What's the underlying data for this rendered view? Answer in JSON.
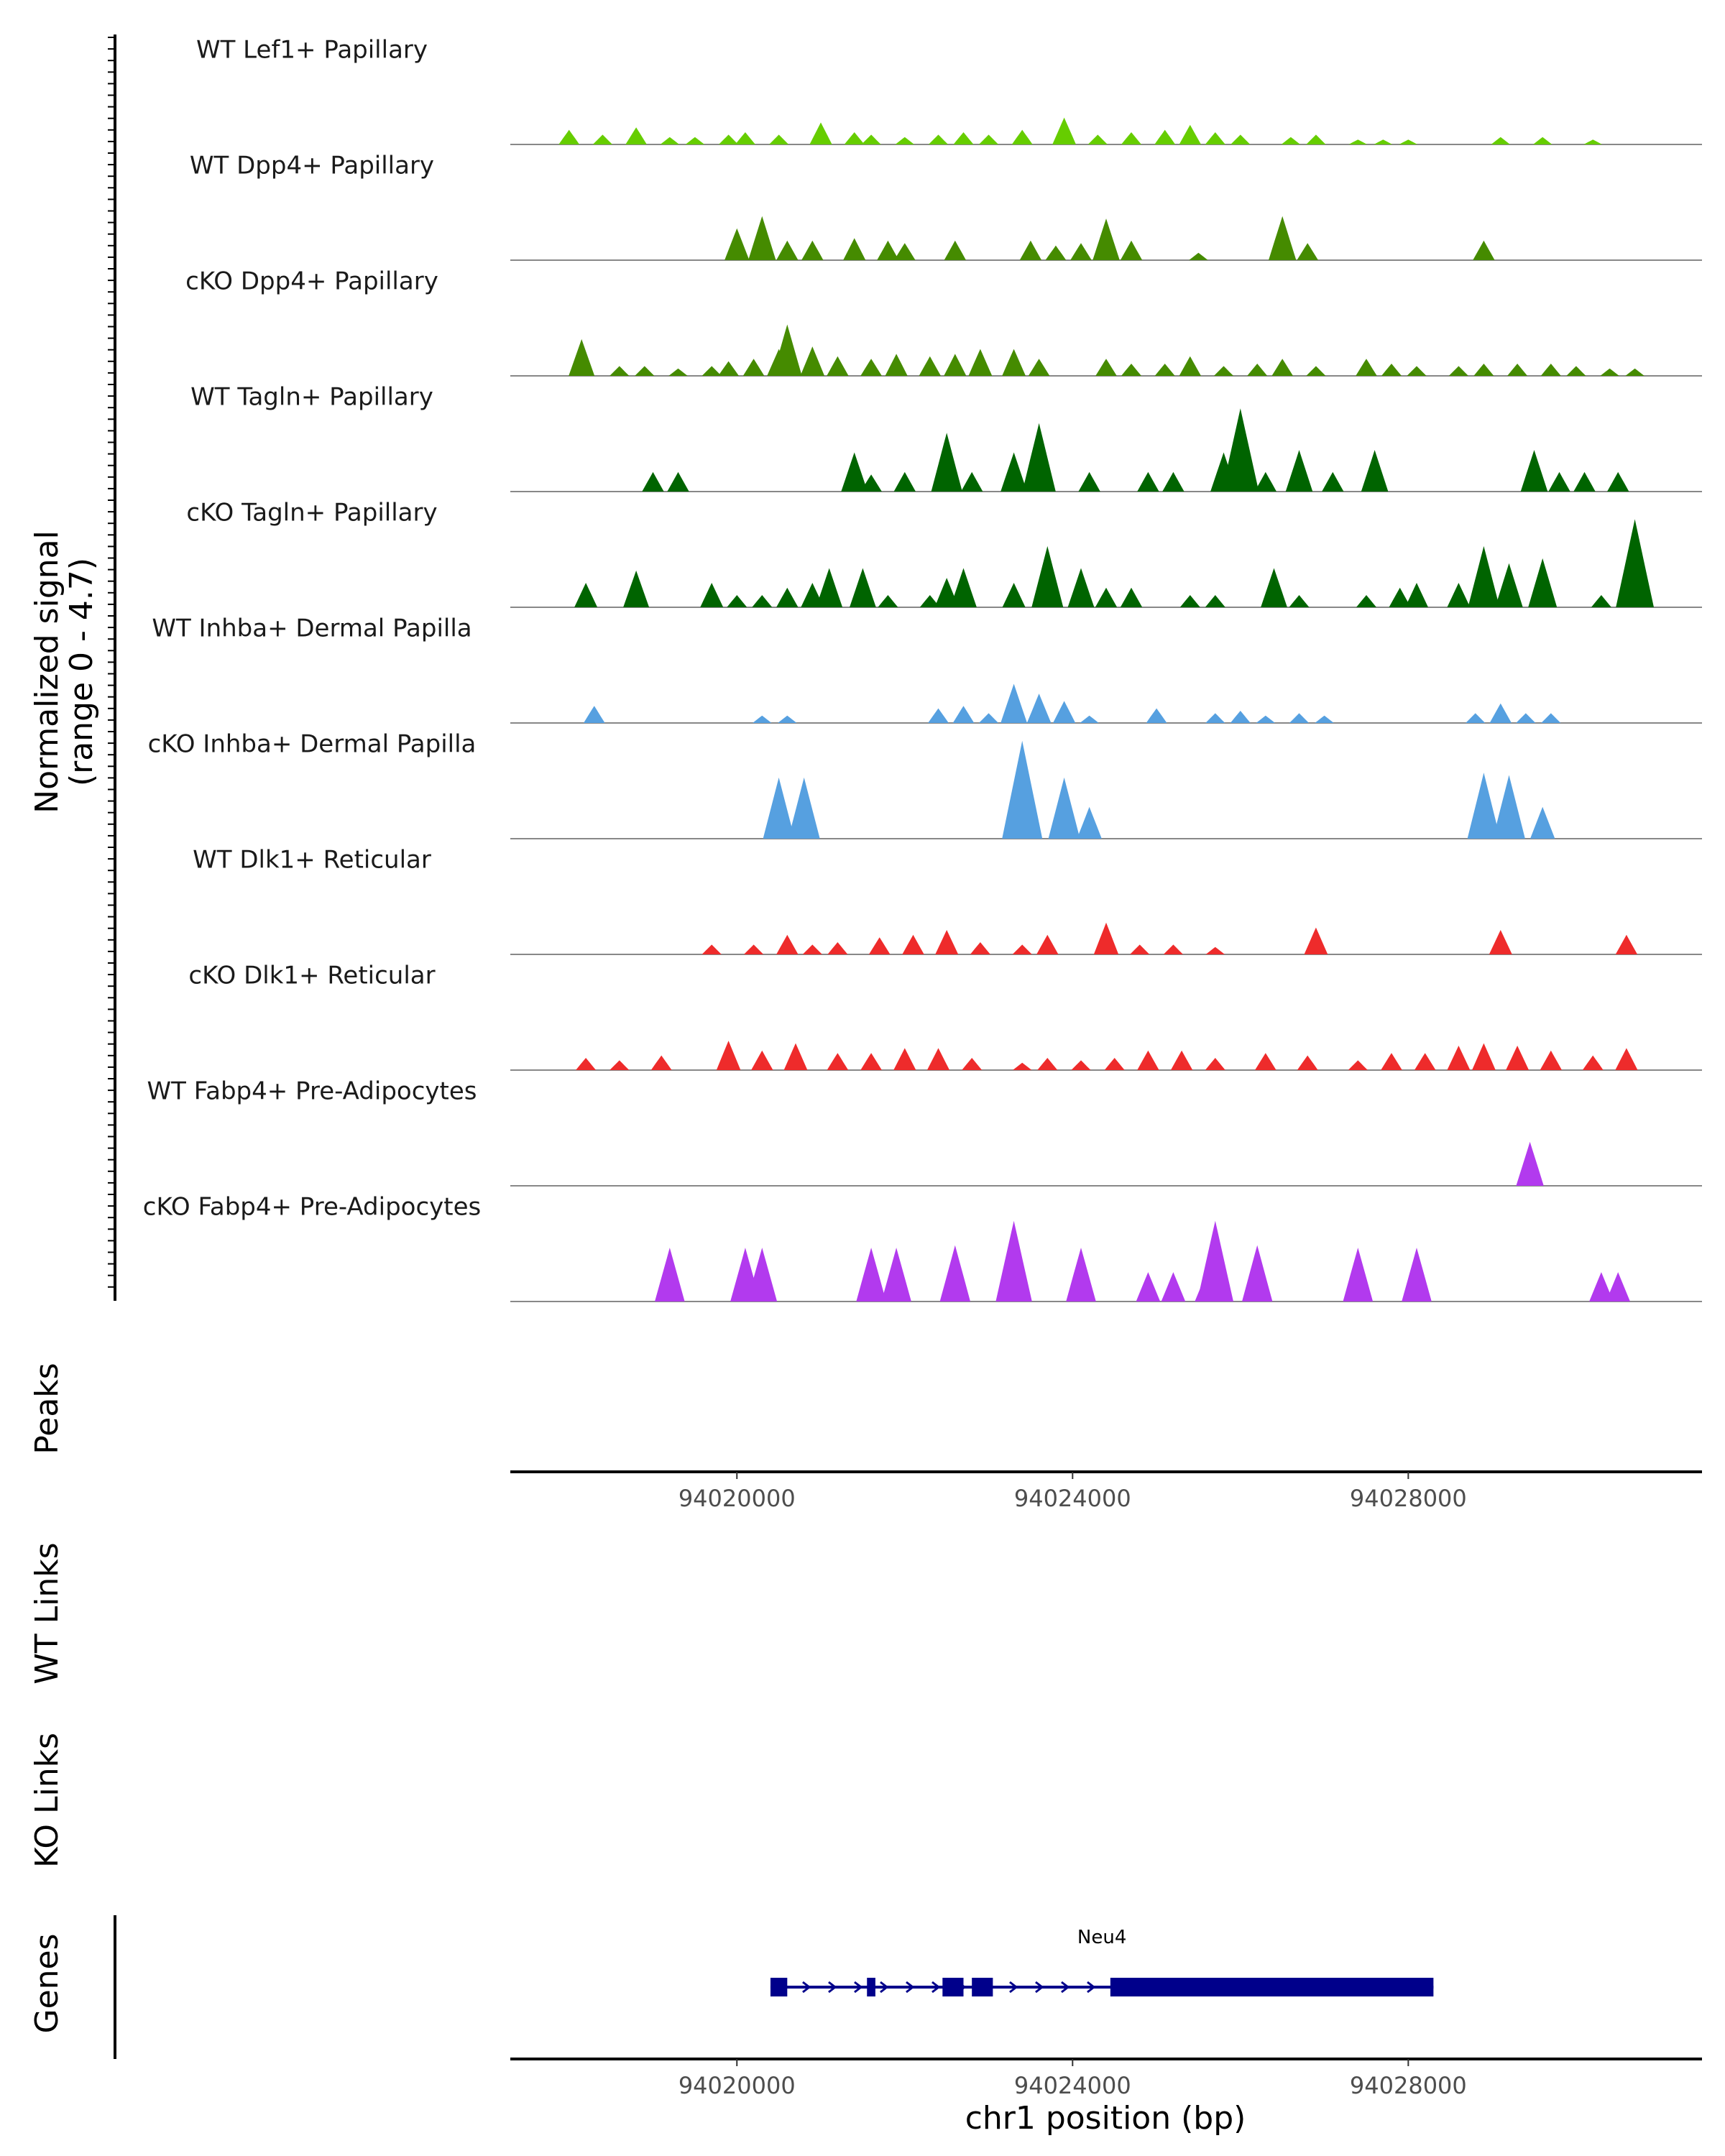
{
  "chart_data": {
    "type": "area",
    "title": "",
    "ylabel": "Normalized signal",
    "ylabel_range": "(range 0 - 4.7)",
    "xlabel": "chr1 position (bp)",
    "chromosome": "chr1",
    "xlim": [
      94017300,
      94031500
    ],
    "ylim": [
      0,
      4.7
    ],
    "x_ticks": [
      94020000,
      94024000,
      94028000
    ],
    "x_tick_labels": [
      "94020000",
      "94024000",
      "94028000"
    ],
    "tracks": [
      {
        "name": "WT Lef1+ Papillary",
        "color": "#66cd00",
        "peaks": [
          [
            94018000,
            0.6
          ],
          [
            94018400,
            0.4
          ],
          [
            94018800,
            0.7
          ],
          [
            94019200,
            0.3
          ],
          [
            94019500,
            0.3
          ],
          [
            94019900,
            0.4
          ],
          [
            94020100,
            0.5
          ],
          [
            94020500,
            0.4
          ],
          [
            94021000,
            0.9
          ],
          [
            94021400,
            0.5
          ],
          [
            94021600,
            0.4
          ],
          [
            94022000,
            0.3
          ],
          [
            94022400,
            0.4
          ],
          [
            94022700,
            0.5
          ],
          [
            94023000,
            0.4
          ],
          [
            94023400,
            0.6
          ],
          [
            94023900,
            1.1
          ],
          [
            94024300,
            0.4
          ],
          [
            94024700,
            0.5
          ],
          [
            94025100,
            0.6
          ],
          [
            94025400,
            0.8
          ],
          [
            94025700,
            0.5
          ],
          [
            94026000,
            0.4
          ],
          [
            94026600,
            0.3
          ],
          [
            94026900,
            0.4
          ],
          [
            94027400,
            0.2
          ],
          [
            94027700,
            0.2
          ],
          [
            94028000,
            0.2
          ],
          [
            94029100,
            0.3
          ],
          [
            94029600,
            0.3
          ],
          [
            94030200,
            0.2
          ]
        ]
      },
      {
        "name": "WT Dpp4+ Papillary",
        "color": "#458b00",
        "peaks": [
          [
            94020000,
            1.3
          ],
          [
            94020300,
            1.8
          ],
          [
            94020600,
            0.8
          ],
          [
            94020900,
            0.8
          ],
          [
            94021400,
            0.9
          ],
          [
            94021800,
            0.8
          ],
          [
            94022000,
            0.7
          ],
          [
            94022600,
            0.8
          ],
          [
            94023500,
            0.8
          ],
          [
            94023800,
            0.6
          ],
          [
            94024100,
            0.7
          ],
          [
            94024400,
            1.7
          ],
          [
            94024700,
            0.8
          ],
          [
            94025500,
            0.3
          ],
          [
            94026500,
            1.8
          ],
          [
            94026800,
            0.7
          ],
          [
            94028900,
            0.8
          ]
        ]
      },
      {
        "name": "cKO Dpp4+ Papillary",
        "color": "#458b00",
        "peaks": [
          [
            94018150,
            1.5
          ],
          [
            94018600,
            0.4
          ],
          [
            94018900,
            0.4
          ],
          [
            94019300,
            0.3
          ],
          [
            94019700,
            0.4
          ],
          [
            94019900,
            0.6
          ],
          [
            94020200,
            0.7
          ],
          [
            94020500,
            1.1
          ],
          [
            94020600,
            2.1
          ],
          [
            94020900,
            1.2
          ],
          [
            94021200,
            0.8
          ],
          [
            94021600,
            0.7
          ],
          [
            94021900,
            0.9
          ],
          [
            94022300,
            0.8
          ],
          [
            94022600,
            0.9
          ],
          [
            94022900,
            1.1
          ],
          [
            94023300,
            1.1
          ],
          [
            94023600,
            0.7
          ],
          [
            94024400,
            0.7
          ],
          [
            94024700,
            0.5
          ],
          [
            94025100,
            0.5
          ],
          [
            94025400,
            0.8
          ],
          [
            94025800,
            0.4
          ],
          [
            94026200,
            0.5
          ],
          [
            94026500,
            0.7
          ],
          [
            94026900,
            0.4
          ],
          [
            94027500,
            0.7
          ],
          [
            94027800,
            0.5
          ],
          [
            94028100,
            0.4
          ],
          [
            94028600,
            0.4
          ],
          [
            94028900,
            0.5
          ],
          [
            94029300,
            0.5
          ],
          [
            94029700,
            0.5
          ],
          [
            94030000,
            0.4
          ],
          [
            94030400,
            0.3
          ],
          [
            94030700,
            0.3
          ]
        ]
      },
      {
        "name": "WT Tagln+ Papillary",
        "color": "#006400",
        "peaks": [
          [
            94019000,
            0.8
          ],
          [
            94019300,
            0.8
          ],
          [
            94021400,
            1.6
          ],
          [
            94021600,
            0.7
          ],
          [
            94022000,
            0.8
          ],
          [
            94022500,
            2.4
          ],
          [
            94022800,
            0.8
          ],
          [
            94023300,
            1.6
          ],
          [
            94023600,
            2.8
          ],
          [
            94024200,
            0.8
          ],
          [
            94024900,
            0.8
          ],
          [
            94025200,
            0.8
          ],
          [
            94025800,
            1.6
          ],
          [
            94026000,
            3.4
          ],
          [
            94026300,
            0.8
          ],
          [
            94026700,
            1.7
          ],
          [
            94027100,
            0.8
          ],
          [
            94027600,
            1.7
          ],
          [
            94029500,
            1.7
          ],
          [
            94029800,
            0.8
          ],
          [
            94030100,
            0.8
          ],
          [
            94030500,
            0.8
          ]
        ]
      },
      {
        "name": "cKO Tagln+ Papillary",
        "color": "#006400",
        "peaks": [
          [
            94018200,
            1.0
          ],
          [
            94018800,
            1.5
          ],
          [
            94019700,
            1.0
          ],
          [
            94020000,
            0.5
          ],
          [
            94020300,
            0.5
          ],
          [
            94020600,
            0.8
          ],
          [
            94020900,
            1.0
          ],
          [
            94021100,
            1.6
          ],
          [
            94021500,
            1.6
          ],
          [
            94021800,
            0.5
          ],
          [
            94022300,
            0.5
          ],
          [
            94022500,
            1.2
          ],
          [
            94022700,
            1.6
          ],
          [
            94023300,
            1.0
          ],
          [
            94023700,
            2.5
          ],
          [
            94024100,
            1.6
          ],
          [
            94024400,
            0.8
          ],
          [
            94024700,
            0.8
          ],
          [
            94025400,
            0.5
          ],
          [
            94025700,
            0.5
          ],
          [
            94026400,
            1.6
          ],
          [
            94026700,
            0.5
          ],
          [
            94027500,
            0.5
          ],
          [
            94027900,
            0.8
          ],
          [
            94028100,
            1.0
          ],
          [
            94028600,
            1.0
          ],
          [
            94028900,
            2.5
          ],
          [
            94029200,
            1.8
          ],
          [
            94029600,
            2.0
          ],
          [
            94030300,
            0.5
          ],
          [
            94030700,
            3.6
          ]
        ]
      },
      {
        "name": "WT Inhba+ Dermal Papilla",
        "color": "#56a0e0",
        "peaks": [
          [
            94018300,
            0.7
          ],
          [
            94020300,
            0.3
          ],
          [
            94020600,
            0.3
          ],
          [
            94022400,
            0.6
          ],
          [
            94022700,
            0.7
          ],
          [
            94023000,
            0.4
          ],
          [
            94023300,
            1.6
          ],
          [
            94023600,
            1.2
          ],
          [
            94023900,
            0.9
          ],
          [
            94024200,
            0.3
          ],
          [
            94025000,
            0.6
          ],
          [
            94025700,
            0.4
          ],
          [
            94026000,
            0.5
          ],
          [
            94026300,
            0.3
          ],
          [
            94026700,
            0.4
          ],
          [
            94027000,
            0.3
          ],
          [
            94028800,
            0.4
          ],
          [
            94029100,
            0.8
          ],
          [
            94029400,
            0.4
          ],
          [
            94029700,
            0.4
          ]
        ]
      },
      {
        "name": "cKO Inhba+ Dermal Papilla",
        "color": "#56a0e0",
        "peaks": [
          [
            94020500,
            2.5
          ],
          [
            94020800,
            2.5
          ],
          [
            94023400,
            4.0
          ],
          [
            94023900,
            2.5
          ],
          [
            94024200,
            1.3
          ],
          [
            94028900,
            2.7
          ],
          [
            94029200,
            2.6
          ],
          [
            94029600,
            1.3
          ]
        ]
      },
      {
        "name": "WT Dlk1+ Reticular",
        "color": "#ee2b2b",
        "peaks": [
          [
            94019700,
            0.4
          ],
          [
            94020200,
            0.4
          ],
          [
            94020600,
            0.8
          ],
          [
            94020900,
            0.4
          ],
          [
            94021200,
            0.5
          ],
          [
            94021700,
            0.7
          ],
          [
            94022100,
            0.8
          ],
          [
            94022500,
            1.0
          ],
          [
            94022900,
            0.5
          ],
          [
            94023400,
            0.4
          ],
          [
            94023700,
            0.8
          ],
          [
            94024400,
            1.3
          ],
          [
            94024800,
            0.4
          ],
          [
            94025200,
            0.4
          ],
          [
            94025700,
            0.3
          ],
          [
            94026900,
            1.1
          ],
          [
            94029100,
            1.0
          ],
          [
            94030600,
            0.8
          ]
        ]
      },
      {
        "name": "cKO Dlk1+ Reticular",
        "color": "#ee2b2b",
        "peaks": [
          [
            94018200,
            0.5
          ],
          [
            94018600,
            0.4
          ],
          [
            94019100,
            0.6
          ],
          [
            94019900,
            1.2
          ],
          [
            94020300,
            0.8
          ],
          [
            94020700,
            1.1
          ],
          [
            94021200,
            0.7
          ],
          [
            94021600,
            0.7
          ],
          [
            94022000,
            0.9
          ],
          [
            94022400,
            0.9
          ],
          [
            94022800,
            0.5
          ],
          [
            94023400,
            0.3
          ],
          [
            94023700,
            0.5
          ],
          [
            94024100,
            0.4
          ],
          [
            94024500,
            0.5
          ],
          [
            94024900,
            0.8
          ],
          [
            94025300,
            0.8
          ],
          [
            94025700,
            0.5
          ],
          [
            94026300,
            0.7
          ],
          [
            94026800,
            0.6
          ],
          [
            94027400,
            0.4
          ],
          [
            94027800,
            0.7
          ],
          [
            94028200,
            0.7
          ],
          [
            94028600,
            1.0
          ],
          [
            94028900,
            1.1
          ],
          [
            94029300,
            1.0
          ],
          [
            94029700,
            0.8
          ],
          [
            94030200,
            0.6
          ],
          [
            94030600,
            0.9
          ]
        ]
      },
      {
        "name": "WT Fabp4+ Pre-Adipocytes",
        "color": "#b23aee",
        "peaks": [
          [
            94029450,
            1.8
          ]
        ]
      },
      {
        "name": "cKO Fabp4+ Pre-Adipocytes",
        "color": "#b23aee",
        "peaks": [
          [
            94019200,
            2.2
          ],
          [
            94020100,
            2.2
          ],
          [
            94020300,
            2.2
          ],
          [
            94021600,
            2.2
          ],
          [
            94021900,
            2.2
          ],
          [
            94022600,
            2.3
          ],
          [
            94023300,
            3.3
          ],
          [
            94024100,
            2.2
          ],
          [
            94024900,
            1.2
          ],
          [
            94025200,
            1.2
          ],
          [
            94025600,
            1.2
          ],
          [
            94025700,
            3.3
          ],
          [
            94026200,
            2.3
          ],
          [
            94027400,
            2.2
          ],
          [
            94028100,
            2.2
          ],
          [
            94030300,
            1.2
          ],
          [
            94030500,
            1.2
          ]
        ]
      }
    ]
  },
  "panels": {
    "peaks_label": "Peaks",
    "wt_links_label": "WT Links",
    "ko_links_label": "KO Links",
    "genes_label": "Genes"
  },
  "genes": [
    {
      "name": "Neu4",
      "start": 94020400,
      "end": 94028300,
      "strand": "+",
      "exons": [
        [
          94020400,
          94020600
        ],
        [
          94021550,
          94021650
        ],
        [
          94022450,
          94022700
        ],
        [
          94022800,
          94023050
        ],
        [
          94024450,
          94028300
        ]
      ]
    }
  ],
  "colors": {
    "gene": "#00008b",
    "baseline": "#888888",
    "axis": "#000000"
  }
}
